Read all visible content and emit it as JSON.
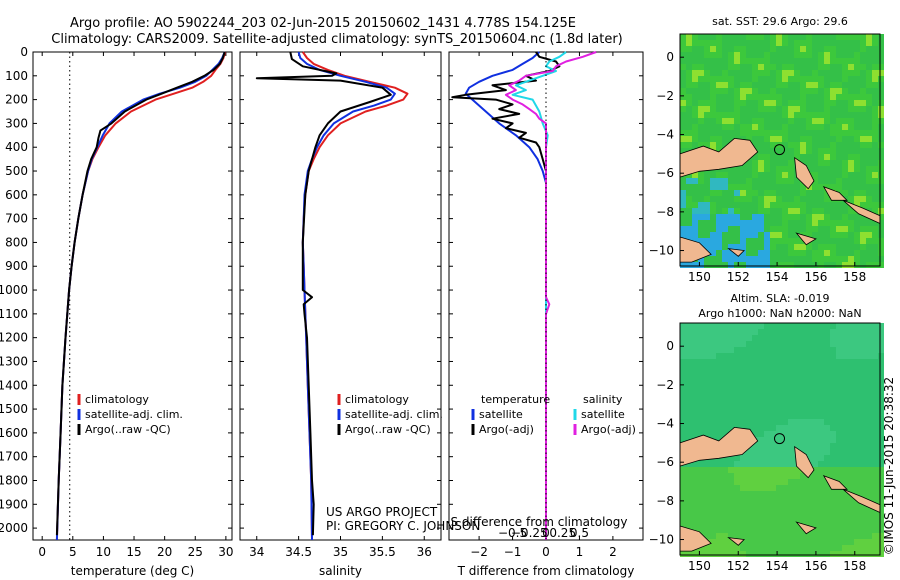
{
  "header": {
    "line1": "Argo profile: AO 5902244_203 02-Jun-2015 20150602_1431 4.778S 154.125E",
    "line2": "Climatology: CARS2009. Satellite-adjusted climatology: synTS_20150604.nc (1.8d later)"
  },
  "footer": {
    "project": "US ARGO PROJECT",
    "pi": "PI: GREGORY C. JOHNSON",
    "stamp": "©IMOS 11-Jun-2015 20:38:32"
  },
  "colors": {
    "climatology": "#e02020",
    "satellite": "#1030e0",
    "argo": "#000000",
    "salinity_satellite": "#20d8e8",
    "salinity_argo": "#e020e0",
    "land": "#f0b890"
  },
  "depth_axis": {
    "ylim": [
      0,
      2050
    ],
    "ticks": [
      0,
      100,
      200,
      300,
      400,
      500,
      600,
      700,
      800,
      900,
      1000,
      1100,
      1200,
      1300,
      1400,
      1500,
      1600,
      1700,
      1800,
      1900,
      2000
    ]
  },
  "chart_data": [
    {
      "type": "line",
      "id": "temperature",
      "xlabel": "temperature (deg C)",
      "xlim": [
        -1.5,
        31
      ],
      "xticks": [
        0,
        5,
        10,
        15,
        20,
        25,
        30
      ],
      "ref_line_x": 4.5,
      "legend": [
        "climatology",
        "satellite-adj. clim.",
        "Argo(..raw -QC)"
      ],
      "series": [
        {
          "name": "climatology",
          "color_key": "climatology",
          "depth": [
            0,
            25,
            50,
            75,
            100,
            125,
            150,
            175,
            200,
            250,
            300,
            350,
            400,
            450,
            500,
            600,
            700,
            800,
            900,
            1000,
            1200,
            1400,
            1600,
            1800,
            2050
          ],
          "values": [
            29.9,
            29.6,
            29.1,
            28.3,
            27.6,
            26.3,
            24.5,
            21.5,
            18.5,
            14.5,
            12.0,
            10.3,
            9.2,
            8.2,
            7.5,
            6.6,
            5.9,
            5.3,
            4.8,
            4.4,
            3.8,
            3.3,
            3.0,
            2.7,
            2.4
          ]
        },
        {
          "name": "satellite-adj. clim.",
          "color_key": "satellite",
          "depth": [
            0,
            25,
            50,
            75,
            100,
            125,
            150,
            175,
            200,
            250,
            300,
            350,
            400,
            450,
            500,
            600,
            700,
            800,
            900,
            1000,
            1200,
            1400,
            1600,
            1800,
            2050
          ],
          "values": [
            29.8,
            29.4,
            28.8,
            27.8,
            26.8,
            25.0,
            22.5,
            19.2,
            16.5,
            13.0,
            11.0,
            9.9,
            9.0,
            8.1,
            7.5,
            6.6,
            5.9,
            5.3,
            4.8,
            4.4,
            3.8,
            3.3,
            3.0,
            2.7,
            2.4
          ]
        },
        {
          "name": "Argo(..raw -QC)",
          "color_key": "argo",
          "depth": [
            0,
            25,
            50,
            75,
            100,
            125,
            150,
            175,
            200,
            250,
            300,
            330,
            360,
            400,
            450,
            500,
            600,
            700,
            800,
            900,
            1000,
            1200,
            1400,
            1600,
            1800,
            2030
          ],
          "values": [
            29.8,
            29.5,
            29.0,
            28.0,
            26.5,
            24.5,
            22.0,
            19.5,
            17.0,
            13.5,
            11.3,
            9.5,
            9.2,
            8.9,
            8.0,
            7.4,
            6.6,
            5.9,
            5.3,
            4.8,
            4.4,
            3.8,
            3.3,
            3.0,
            2.7,
            2.4
          ]
        }
      ]
    },
    {
      "type": "line",
      "id": "salinity",
      "xlabel": "salinity",
      "xlim": [
        33.8,
        36.2
      ],
      "xticks": [
        34,
        34.5,
        35,
        35.5,
        36
      ],
      "legend": [
        "climatology",
        "satellite-adj. clim.",
        "Argo(..raw -QC)"
      ],
      "series": [
        {
          "name": "climatology",
          "color_key": "climatology",
          "depth": [
            0,
            25,
            50,
            75,
            100,
            125,
            150,
            175,
            200,
            225,
            250,
            300,
            350,
            400,
            450,
            500,
            600,
            700,
            800,
            900,
            1000,
            1200,
            1400,
            1600,
            1800,
            2050
          ],
          "values": [
            34.55,
            34.6,
            34.68,
            34.85,
            35.05,
            35.35,
            35.65,
            35.8,
            35.75,
            35.55,
            35.3,
            35.0,
            34.85,
            34.75,
            34.68,
            34.62,
            34.58,
            34.56,
            34.55,
            34.56,
            34.57,
            34.59,
            34.61,
            34.63,
            34.65,
            34.66
          ]
        },
        {
          "name": "satellite-adj. clim.",
          "color_key": "satellite",
          "depth": [
            0,
            25,
            50,
            75,
            100,
            125,
            150,
            175,
            200,
            225,
            250,
            300,
            350,
            400,
            450,
            500,
            600,
            700,
            800,
            900,
            1000,
            1200,
            1400,
            1600,
            1800,
            2050
          ],
          "values": [
            34.5,
            34.52,
            34.6,
            34.75,
            35.0,
            35.3,
            35.55,
            35.65,
            35.6,
            35.4,
            35.15,
            34.92,
            34.8,
            34.72,
            34.66,
            34.61,
            34.57,
            34.56,
            34.55,
            34.56,
            34.57,
            34.59,
            34.61,
            34.63,
            34.65,
            34.66
          ]
        },
        {
          "name": "Argo(..raw -QC)",
          "color_key": "argo",
          "depth": [
            0,
            30,
            60,
            90,
            100,
            110,
            120,
            150,
            180,
            210,
            250,
            300,
            350,
            400,
            500,
            600,
            800,
            1000,
            1030,
            1060,
            1100,
            1200,
            1400,
            1600,
            1800,
            1900,
            2030
          ],
          "values": [
            34.4,
            34.42,
            34.55,
            34.95,
            34.9,
            34.0,
            35.0,
            35.5,
            35.6,
            35.35,
            35.0,
            34.85,
            34.75,
            34.7,
            34.62,
            34.58,
            34.55,
            34.55,
            34.66,
            34.56,
            34.57,
            34.6,
            34.62,
            34.64,
            34.66,
            34.68,
            34.67
          ]
        }
      ]
    },
    {
      "type": "line",
      "id": "difference",
      "xlabel": "T difference from climatology",
      "x2label": "S difference from climatology",
      "xlim": [
        -2.9,
        2.9
      ],
      "xticks": [
        -2,
        -1,
        0,
        1,
        2
      ],
      "s_xticks": [
        -0.5,
        -0.25,
        0,
        0.25,
        0.5
      ],
      "legend_headers": [
        "temperature",
        "salinity"
      ],
      "legend": [
        "satellite",
        "Argo(-adj)",
        "satellite",
        "Argo(-adj)"
      ],
      "series": [
        {
          "name": "temperature satellite",
          "color_key": "satellite",
          "depth": [
            0,
            25,
            50,
            75,
            100,
            125,
            150,
            175,
            200,
            250,
            300,
            350,
            400,
            450,
            500,
            550,
            600,
            800,
            1000,
            2050
          ],
          "values": [
            -0.2,
            -0.4,
            -0.7,
            -1.0,
            -1.6,
            -2.0,
            -2.3,
            -2.4,
            -2.2,
            -1.8,
            -1.4,
            -0.9,
            -0.5,
            -0.25,
            -0.1,
            0.0,
            0.0,
            0.0,
            0.0,
            0.0
          ]
        },
        {
          "name": "temperature Argo(-adj)",
          "color_key": "argo",
          "depth": [
            0,
            20,
            40,
            60,
            80,
            100,
            120,
            140,
            160,
            180,
            190,
            200,
            220,
            240,
            260,
            280,
            300,
            320,
            340,
            360,
            380,
            400,
            450,
            500,
            550,
            600
          ],
          "values": [
            -0.3,
            -0.2,
            0.3,
            0.4,
            0.1,
            -0.6,
            -0.3,
            -1.6,
            -1.2,
            -2.4,
            -2.8,
            -1.5,
            -1.0,
            -1.4,
            -0.8,
            -1.6,
            -1.0,
            -1.2,
            -0.6,
            -0.8,
            -0.3,
            -0.2,
            -0.1,
            0.0,
            0.0,
            0.0
          ]
        },
        {
          "name": "salinity satellite",
          "color_key": "salinity_satellite",
          "depth": [
            0,
            20,
            40,
            60,
            80,
            100,
            120,
            140,
            160,
            180,
            200,
            250,
            300,
            350,
            400,
            500,
            600,
            800,
            1000,
            2050
          ],
          "values": [
            0.6,
            0.4,
            0.1,
            0.0,
            0.3,
            -0.1,
            -0.5,
            -0.9,
            -0.6,
            -1.0,
            -0.4,
            -0.2,
            -0.1,
            0.05,
            0.0,
            0.0,
            0.0,
            0.0,
            0.0,
            0.0
          ]
        },
        {
          "name": "salinity Argo(-adj)",
          "color_key": "salinity_argo",
          "depth": [
            0,
            20,
            40,
            60,
            80,
            100,
            120,
            140,
            160,
            180,
            200,
            220,
            240,
            260,
            280,
            300,
            1030,
            1060,
            1100,
            2050
          ],
          "values": [
            1.5,
            1.1,
            0.6,
            0.3,
            0.2,
            -0.6,
            -0.8,
            -1.1,
            -0.9,
            -1.2,
            -1.0,
            -0.7,
            -0.5,
            -0.3,
            -0.2,
            0.0,
            0.0,
            0.1,
            0.0,
            0.0
          ]
        }
      ]
    },
    {
      "type": "heatmap",
      "id": "sst_map",
      "title": "sat. SST: 29.6 Argo: 29.6",
      "xticks": [
        150,
        152,
        154,
        156,
        158
      ],
      "yticks": [
        0,
        -2,
        -4,
        -6,
        -8,
        -10
      ],
      "xlim": [
        149,
        159.3
      ],
      "ylim": [
        -10.8,
        1.2
      ],
      "argo_position": [
        154.125,
        -4.778
      ]
    },
    {
      "type": "heatmap",
      "id": "sla_map",
      "title_line1": "Altim. SLA: -0.019",
      "title_line2": "Argo h1000: NaN h2000: NaN",
      "xticks": [
        150,
        152,
        154,
        156,
        158
      ],
      "yticks": [
        0,
        -2,
        -4,
        -6,
        -8,
        -10
      ],
      "xlim": [
        149,
        159.3
      ],
      "ylim": [
        -10.8,
        1.2
      ],
      "argo_position": [
        154.125,
        -4.778
      ]
    }
  ]
}
